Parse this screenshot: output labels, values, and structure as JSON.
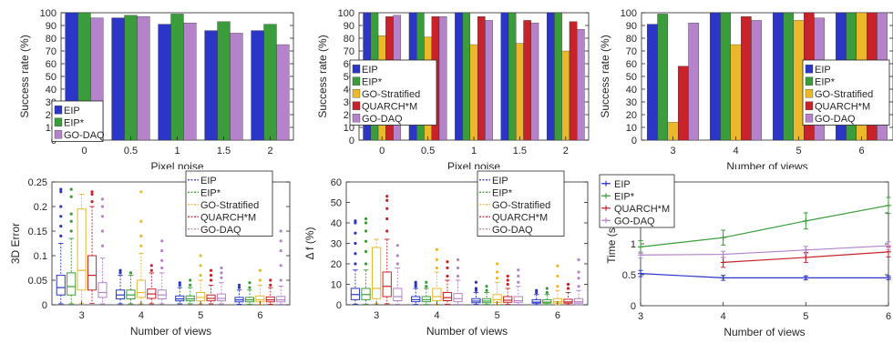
{
  "colors": {
    "EIP": "#2b36c6",
    "EIP*": "#3a9c3a",
    "GO-Stratified": "#eab82a",
    "QUARCH*M": "#c8232a",
    "GO-DAQ": "#b483c9"
  },
  "chart_data": [
    {
      "type": "bar",
      "xlabel": "Pixel noise",
      "ylabel": "Success rate (%)",
      "ylim": [
        0,
        100
      ],
      "yticks": [
        "0",
        "10",
        "20",
        "30",
        "40",
        "50",
        "60",
        "70",
        "80",
        "90",
        "100"
      ],
      "categories": [
        "0",
        "0.5",
        "1",
        "1.5",
        "2"
      ],
      "legend": "left",
      "series": [
        {
          "name": "EIP",
          "values": [
            100,
            96,
            91,
            86,
            86
          ]
        },
        {
          "name": "EIP*",
          "values": [
            100,
            98,
            99,
            93,
            91
          ]
        },
        {
          "name": "GO-DAQ",
          "values": [
            96,
            97,
            92,
            84,
            75
          ]
        }
      ]
    },
    {
      "type": "bar",
      "xlabel": "Pixel noise",
      "ylabel": "Success rate (%)",
      "ylim": [
        0,
        100
      ],
      "yticks": [
        "0",
        "10",
        "20",
        "30",
        "40",
        "50",
        "60",
        "70",
        "80",
        "90",
        "100"
      ],
      "categories": [
        "0",
        "0.5",
        "1",
        "1.5",
        "2"
      ],
      "legend": "left",
      "series": [
        {
          "name": "EIP",
          "values": [
            100,
            100,
            100,
            100,
            100
          ]
        },
        {
          "name": "EIP*",
          "values": [
            100,
            100,
            100,
            100,
            100
          ]
        },
        {
          "name": "GO-Stratified",
          "values": [
            82,
            81,
            75,
            76,
            70
          ]
        },
        {
          "name": "QUARCH*M",
          "values": [
            97,
            97,
            97,
            94,
            93
          ]
        },
        {
          "name": "GO-DAQ",
          "values": [
            98,
            97,
            94,
            92,
            87
          ]
        }
      ]
    },
    {
      "type": "bar",
      "xlabel": "Number of views",
      "ylabel": "Success rate (%)",
      "ylim": [
        0,
        100
      ],
      "yticks": [
        "0",
        "10",
        "20",
        "30",
        "40",
        "50",
        "60",
        "70",
        "80",
        "90",
        "100"
      ],
      "categories": [
        "3",
        "4",
        "5",
        "6"
      ],
      "legend": "right",
      "series": [
        {
          "name": "EIP",
          "values": [
            91,
            100,
            100,
            100
          ]
        },
        {
          "name": "EIP*",
          "values": [
            99,
            100,
            100,
            100
          ]
        },
        {
          "name": "GO-Stratified",
          "values": [
            14,
            75,
            94,
            100
          ]
        },
        {
          "name": "QUARCH*M",
          "values": [
            58,
            97,
            100,
            100
          ]
        },
        {
          "name": "GO-DAQ",
          "values": [
            92,
            94,
            96,
            100
          ]
        }
      ]
    },
    {
      "type": "box",
      "xlabel": "Number of views",
      "ylabel": "3D Error",
      "ylim": [
        0,
        0.25
      ],
      "yticks": [
        "0",
        "0.05",
        "0.1",
        "0.15",
        "0.2",
        "0.25"
      ],
      "categories": [
        "3",
        "4",
        "5",
        "6"
      ],
      "legend": "top-right",
      "series": [
        {
          "name": "EIP",
          "boxes": [
            [
              0.002,
              0.02,
              0.035,
              0.06,
              0.125
            ],
            [
              0.002,
              0.012,
              0.02,
              0.03,
              0.06
            ],
            [
              0.002,
              0.008,
              0.012,
              0.018,
              0.035
            ],
            [
              0.001,
              0.006,
              0.01,
              0.015,
              0.03
            ]
          ],
          "outliers": [
            [
              0.14,
              0.16,
              0.18,
              0.2,
              0.23,
              0.235
            ],
            [
              0.065,
              0.07
            ],
            [
              0.04,
              0.045
            ],
            [
              0.035,
              0.04
            ]
          ]
        },
        {
          "name": "EIP*",
          "boxes": [
            [
              0.002,
              0.02,
              0.037,
              0.065,
              0.135
            ],
            [
              0.002,
              0.012,
              0.02,
              0.03,
              0.06
            ],
            [
              0.002,
              0.008,
              0.012,
              0.018,
              0.035
            ],
            [
              0.001,
              0.006,
              0.01,
              0.015,
              0.03
            ]
          ],
          "outliers": [
            [
              0.15,
              0.17,
              0.185,
              0.22,
              0.235
            ],
            [
              0.065
            ],
            [
              0.04,
              0.05
            ],
            [
              0.035,
              0.045
            ]
          ]
        },
        {
          "name": "GO-Stratified",
          "boxes": [
            [
              0.003,
              0.03,
              0.07,
              0.195,
              0.225
            ],
            [
              0.002,
              0.015,
              0.025,
              0.05,
              0.105
            ],
            [
              0.002,
              0.008,
              0.015,
              0.025,
              0.05
            ],
            [
              0.001,
              0.006,
              0.01,
              0.018,
              0.04
            ]
          ],
          "outliers": [
            [],
            [
              0.12,
              0.14,
              0.17,
              0.23
            ],
            [
              0.06,
              0.08,
              0.1
            ],
            [
              0.05,
              0.07
            ]
          ]
        },
        {
          "name": "QUARCH*M",
          "boxes": [
            [
              0.003,
              0.03,
              0.06,
              0.1,
              0.2
            ],
            [
              0.002,
              0.013,
              0.022,
              0.032,
              0.065
            ],
            [
              0.002,
              0.008,
              0.013,
              0.02,
              0.04
            ],
            [
              0.001,
              0.006,
              0.01,
              0.016,
              0.035
            ]
          ],
          "outliers": [
            [
              0.21,
              0.225,
              0.23
            ],
            [
              0.07,
              0.08
            ],
            [
              0.05,
              0.06,
              0.07
            ],
            [
              0.04,
              0.05
            ]
          ]
        },
        {
          "name": "GO-DAQ",
          "boxes": [
            [
              0.002,
              0.015,
              0.025,
              0.045,
              0.095
            ],
            [
              0.002,
              0.012,
              0.02,
              0.03,
              0.065
            ],
            [
              0.002,
              0.008,
              0.013,
              0.022,
              0.045
            ],
            [
              0.001,
              0.006,
              0.01,
              0.017,
              0.038
            ]
          ],
          "outliers": [
            [
              0.12,
              0.15,
              0.18,
              0.2,
              0.215
            ],
            [
              0.075,
              0.09,
              0.11,
              0.13
            ],
            [
              0.055,
              0.065,
              0.075
            ],
            [
              0.05,
              0.08,
              0.11,
              0.13,
              0.15
            ]
          ]
        }
      ]
    },
    {
      "type": "box",
      "xlabel": "Number of views",
      "ylabel": "Δ f (%)",
      "ylim": [
        0,
        60
      ],
      "yticks": [
        "0",
        "10",
        "20",
        "30",
        "40",
        "50",
        "60"
      ],
      "categories": [
        "3",
        "4",
        "5",
        "6"
      ],
      "legend": "top-right",
      "series": [
        {
          "name": "EIP",
          "boxes": [
            [
              0.3,
              2.5,
              5,
              8,
              17
            ],
            [
              0.2,
              1.5,
              2.5,
              4,
              8
            ],
            [
              0.2,
              1,
              1.8,
              3,
              6
            ],
            [
              0.1,
              0.8,
              1.3,
              2.5,
              5
            ]
          ],
          "outliers": [
            [
              20,
              25,
              30,
              35,
              40,
              41
            ],
            [
              9,
              10,
              11
            ],
            [
              7,
              8,
              11
            ],
            [
              6,
              7
            ]
          ]
        },
        {
          "name": "EIP*",
          "boxes": [
            [
              0.3,
              2.5,
              5,
              8,
              17
            ],
            [
              0.2,
              1.5,
              2.5,
              4,
              8
            ],
            [
              0.2,
              1,
              1.8,
              3,
              6
            ],
            [
              0.1,
              0.8,
              1.3,
              2.5,
              5
            ]
          ],
          "outliers": [
            [
              20,
              26,
              31,
              36,
              40,
              42
            ],
            [
              9,
              11
            ],
            [
              7,
              9
            ],
            [
              6,
              8
            ]
          ]
        },
        {
          "name": "GO-Stratified",
          "boxes": [
            [
              0.5,
              3,
              8,
              28,
              32
            ],
            [
              0.3,
              2,
              4,
              8,
              16
            ],
            [
              0.2,
              1.2,
              2.5,
              5,
              11
            ],
            [
              0.1,
              0.8,
              1.5,
              3,
              7
            ]
          ],
          "outliers": [
            [],
            [
              18,
              22,
              27
            ],
            [
              13,
              16,
              20
            ],
            [
              9,
              14,
              19
            ]
          ]
        },
        {
          "name": "QUARCH*M",
          "boxes": [
            [
              0.5,
              4,
              9,
              16,
              32
            ],
            [
              0.3,
              2,
              3.5,
              6,
              12
            ],
            [
              0.2,
              1.2,
              2.2,
              4,
              8
            ],
            [
              0.1,
              0.8,
              1.4,
              2.7,
              6
            ]
          ],
          "outliers": [
            [
              36,
              42,
              47,
              51,
              53
            ],
            [
              14,
              18,
              21
            ],
            [
              10,
              12,
              14
            ],
            [
              8,
              10
            ]
          ]
        },
        {
          "name": "GO-DAQ",
          "boxes": [
            [
              0.3,
              2,
              4,
              8,
              18
            ],
            [
              0.2,
              1.5,
              3,
              5.5,
              12
            ],
            [
              0.2,
              1.2,
              2,
              4,
              9
            ],
            [
              0.1,
              0.8,
              1.5,
              3,
              7
            ]
          ],
          "outliers": [
            [
              20,
              24,
              29
            ],
            [
              14,
              18,
              22
            ],
            [
              11,
              14,
              17
            ],
            [
              9,
              13,
              16,
              22
            ]
          ]
        }
      ]
    },
    {
      "type": "line",
      "xlabel": "Number of views",
      "ylabel": "Time (s)",
      "ylim": [
        0,
        2
      ],
      "yticks": [
        "0",
        "0.5",
        "1",
        "1.5",
        "2"
      ],
      "x": [
        3,
        4,
        5,
        6
      ],
      "xticks": [
        "3",
        "4",
        "5",
        "6"
      ],
      "legend": "top-left",
      "series": [
        {
          "name": "EIP",
          "values": [
            0.52,
            0.45,
            0.45,
            0.45
          ],
          "err": [
            0.05,
            0.04,
            0.03,
            0.03
          ]
        },
        {
          "name": "EIP*",
          "values": [
            0.95,
            1.1,
            1.37,
            1.62
          ],
          "err": [
            0.1,
            0.12,
            0.13,
            0.13
          ]
        },
        {
          "name": "QUARCH*M",
          "values": [
            null,
            0.7,
            0.78,
            0.87
          ],
          "err": [
            0,
            0.08,
            0.08,
            0.08
          ]
        },
        {
          "name": "GO-DAQ",
          "values": [
            0.82,
            0.83,
            0.9,
            0.97
          ],
          "err": [
            0.05,
            0.05,
            0.06,
            0.06
          ]
        }
      ]
    }
  ]
}
